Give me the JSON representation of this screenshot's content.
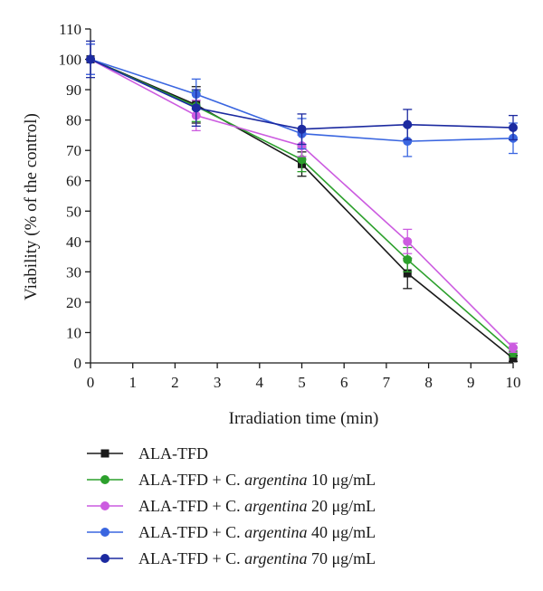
{
  "chart_data": {
    "type": "line",
    "xlabel": "Irradiation time (min)",
    "ylabel": "Viability (% of the control)",
    "xlim": [
      0,
      10
    ],
    "ylim": [
      0,
      110
    ],
    "xticks": [
      0,
      1,
      2,
      3,
      4,
      5,
      6,
      7,
      8,
      9,
      10
    ],
    "yticks": [
      0,
      10,
      20,
      30,
      40,
      50,
      60,
      70,
      80,
      90,
      100,
      110
    ],
    "grid": false,
    "legend_position": "bottom",
    "x": [
      0,
      2.5,
      5,
      7.5,
      10
    ],
    "series": [
      {
        "name": "ALA-TFD",
        "legend_prefix": "ALA-TFD",
        "legend_italic": "",
        "legend_suffix": "",
        "color": "#1a1a1a",
        "marker": "square",
        "values": [
          100,
          85,
          65.5,
          29.5,
          1.5
        ],
        "errors": [
          5,
          6,
          4,
          5,
          1
        ]
      },
      {
        "name": "ALA-TFD + C. argentina 10 μg/mL",
        "legend_prefix": "ALA-TFD + C. ",
        "legend_italic": "argentina",
        "legend_suffix": " 10 μg/mL",
        "color": "#2ca02c",
        "marker": "circle",
        "values": [
          100,
          84.5,
          67,
          34,
          3.5
        ],
        "errors": [
          5,
          5,
          4,
          4,
          1.5
        ]
      },
      {
        "name": "ALA-TFD + C. argentina 20 μg/mL",
        "legend_prefix": "ALA-TFD + C. ",
        "legend_italic": "argentina",
        "legend_suffix": " 20 μg/mL",
        "color": "#cc5ce0",
        "marker": "circle",
        "values": [
          100,
          81.5,
          71.5,
          40,
          5
        ],
        "errors": [
          5,
          5,
          3.5,
          4,
          1.5
        ]
      },
      {
        "name": "ALA-TFD + C. argentina 40 μg/mL",
        "legend_prefix": "ALA-TFD + C. ",
        "legend_italic": "argentina",
        "legend_suffix": " 40 μg/mL",
        "color": "#3a66e0",
        "marker": "circle",
        "values": [
          100,
          88.5,
          75.5,
          73,
          74
        ],
        "errors": [
          5,
          5,
          5,
          5,
          5
        ]
      },
      {
        "name": "ALA-TFD + C. argentina 70 μg/mL",
        "legend_prefix": "ALA-TFD + C. ",
        "legend_italic": "argentina",
        "legend_suffix": " 70 μg/mL",
        "color": "#1c2aa0",
        "marker": "circle",
        "values": [
          100,
          84,
          77,
          78.5,
          77.5
        ],
        "errors": [
          6,
          6,
          5,
          5,
          4
        ]
      }
    ]
  }
}
